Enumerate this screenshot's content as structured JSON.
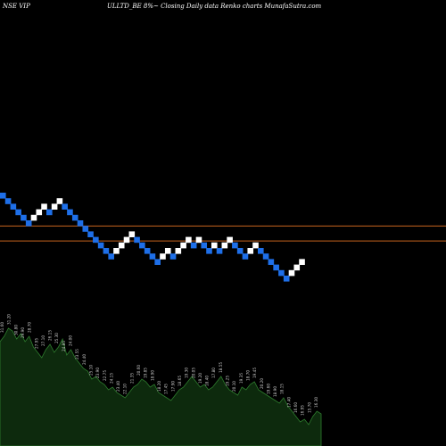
{
  "header": {
    "symbol": "NSE VIP",
    "description": "ULLTD_BE 8%~ Closing Daily data Renko charts MunafaSutra.com"
  },
  "colors": {
    "background": "#000000",
    "up_brick": "#ffffff",
    "down_brick": "#1e6fe8",
    "resistance_line": "#c8641e",
    "volume_fill": "#0d2a0d",
    "volume_stroke": "#2e7d2e",
    "volume_label": "#c8c8c8"
  },
  "chart_data": {
    "type": "renko",
    "title": "",
    "bricks": [
      {
        "i": 0,
        "level": 0,
        "dir": "down"
      },
      {
        "i": 1,
        "level": -1,
        "dir": "down"
      },
      {
        "i": 2,
        "level": -2,
        "dir": "down"
      },
      {
        "i": 3,
        "level": -3,
        "dir": "down"
      },
      {
        "i": 4,
        "level": -4,
        "dir": "down"
      },
      {
        "i": 5,
        "level": -5,
        "dir": "down"
      },
      {
        "i": 6,
        "level": -4,
        "dir": "up"
      },
      {
        "i": 7,
        "level": -3,
        "dir": "up"
      },
      {
        "i": 8,
        "level": -2,
        "dir": "up"
      },
      {
        "i": 9,
        "level": -3,
        "dir": "down"
      },
      {
        "i": 10,
        "level": -2,
        "dir": "up"
      },
      {
        "i": 11,
        "level": -1,
        "dir": "up"
      },
      {
        "i": 12,
        "level": -2,
        "dir": "down"
      },
      {
        "i": 13,
        "level": -3,
        "dir": "down"
      },
      {
        "i": 14,
        "level": -4,
        "dir": "down"
      },
      {
        "i": 15,
        "level": -5,
        "dir": "down"
      },
      {
        "i": 16,
        "level": -6,
        "dir": "down"
      },
      {
        "i": 17,
        "level": -7,
        "dir": "down"
      },
      {
        "i": 18,
        "level": -8,
        "dir": "down"
      },
      {
        "i": 19,
        "level": -9,
        "dir": "down"
      },
      {
        "i": 20,
        "level": -10,
        "dir": "down"
      },
      {
        "i": 21,
        "level": -11,
        "dir": "down"
      },
      {
        "i": 22,
        "level": -10,
        "dir": "up"
      },
      {
        "i": 23,
        "level": -9,
        "dir": "up"
      },
      {
        "i": 24,
        "level": -8,
        "dir": "up"
      },
      {
        "i": 25,
        "level": -7,
        "dir": "up"
      },
      {
        "i": 26,
        "level": -8,
        "dir": "down"
      },
      {
        "i": 27,
        "level": -9,
        "dir": "down"
      },
      {
        "i": 28,
        "level": -10,
        "dir": "down"
      },
      {
        "i": 29,
        "level": -11,
        "dir": "down"
      },
      {
        "i": 30,
        "level": -12,
        "dir": "down"
      },
      {
        "i": 31,
        "level": -11,
        "dir": "up"
      },
      {
        "i": 32,
        "level": -10,
        "dir": "up"
      },
      {
        "i": 33,
        "level": -11,
        "dir": "down"
      },
      {
        "i": 34,
        "level": -10,
        "dir": "up"
      },
      {
        "i": 35,
        "level": -9,
        "dir": "up"
      },
      {
        "i": 36,
        "level": -8,
        "dir": "up"
      },
      {
        "i": 37,
        "level": -9,
        "dir": "down"
      },
      {
        "i": 38,
        "level": -8,
        "dir": "up"
      },
      {
        "i": 39,
        "level": -9,
        "dir": "down"
      },
      {
        "i": 40,
        "level": -10,
        "dir": "down"
      },
      {
        "i": 41,
        "level": -9,
        "dir": "up"
      },
      {
        "i": 42,
        "level": -10,
        "dir": "down"
      },
      {
        "i": 43,
        "level": -9,
        "dir": "up"
      },
      {
        "i": 44,
        "level": -8,
        "dir": "up"
      },
      {
        "i": 45,
        "level": -9,
        "dir": "down"
      },
      {
        "i": 46,
        "level": -10,
        "dir": "down"
      },
      {
        "i": 47,
        "level": -11,
        "dir": "down"
      },
      {
        "i": 48,
        "level": -10,
        "dir": "up"
      },
      {
        "i": 49,
        "level": -9,
        "dir": "up"
      },
      {
        "i": 50,
        "level": -10,
        "dir": "down"
      },
      {
        "i": 51,
        "level": -11,
        "dir": "down"
      },
      {
        "i": 52,
        "level": -12,
        "dir": "down"
      },
      {
        "i": 53,
        "level": -13,
        "dir": "down"
      },
      {
        "i": 54,
        "level": -14,
        "dir": "down"
      },
      {
        "i": 55,
        "level": -15,
        "dir": "down"
      },
      {
        "i": 56,
        "level": -14,
        "dir": "up"
      },
      {
        "i": 57,
        "level": -13,
        "dir": "up"
      },
      {
        "i": 58,
        "level": -12,
        "dir": "up"
      }
    ],
    "reference_lines": [
      {
        "level": -5.5
      },
      {
        "level": -8.2
      }
    ],
    "volume_profile": [
      78,
      82,
      88,
      86,
      80,
      84,
      78,
      82,
      74,
      70,
      66,
      72,
      76,
      70,
      74,
      80,
      68,
      72,
      66,
      62,
      58,
      56,
      50,
      52,
      48,
      46,
      42,
      44,
      40,
      38,
      36,
      40,
      44,
      46,
      50,
      48,
      44,
      46,
      40,
      38,
      36,
      34,
      38,
      42,
      44,
      48,
      52,
      48,
      44,
      46,
      42,
      44,
      48,
      52,
      46,
      42,
      40,
      38,
      44,
      42,
      46,
      48,
      42,
      40,
      38,
      36,
      34,
      32,
      36,
      30,
      26,
      22,
      18,
      20,
      16,
      22,
      26,
      24
    ],
    "volume_labels": [
      {
        "text": "31.60"
      },
      {
        "text": "31.20"
      },
      {
        "text": "30.80"
      },
      {
        "text": "29.90"
      },
      {
        "text": "28.70"
      },
      {
        "text": "27.95"
      },
      {
        "text": "27.10"
      },
      {
        "text": "26.15"
      },
      {
        "text": "25.30"
      },
      {
        "text": "24.85"
      },
      {
        "text": "24.00"
      },
      {
        "text": "23.55"
      },
      {
        "text": "24.40"
      },
      {
        "text": "25.10"
      },
      {
        "text": "23.90"
      },
      {
        "text": "22.75"
      },
      {
        "text": "24.15"
      },
      {
        "text": "23.40"
      },
      {
        "text": "22.10"
      },
      {
        "text": "21.35"
      },
      {
        "text": "20.60"
      },
      {
        "text": "19.85"
      },
      {
        "text": "18.90"
      },
      {
        "text": "18.20"
      },
      {
        "text": "17.45"
      },
      {
        "text": "17.90"
      },
      {
        "text": "18.65"
      },
      {
        "text": "19.30"
      },
      {
        "text": "20.05"
      },
      {
        "text": "19.20"
      },
      {
        "text": "18.40"
      },
      {
        "text": "17.80"
      },
      {
        "text": "18.55"
      },
      {
        "text": "19.25"
      },
      {
        "text": "20.10"
      },
      {
        "text": "19.35"
      },
      {
        "text": "18.70"
      },
      {
        "text": "19.45"
      },
      {
        "text": "20.20"
      },
      {
        "text": "19.60"
      },
      {
        "text": "18.90"
      },
      {
        "text": "18.15"
      },
      {
        "text": "17.40"
      },
      {
        "text": "16.60"
      },
      {
        "text": "16.95"
      },
      {
        "text": "15.70"
      },
      {
        "text": "16.30"
      }
    ]
  }
}
